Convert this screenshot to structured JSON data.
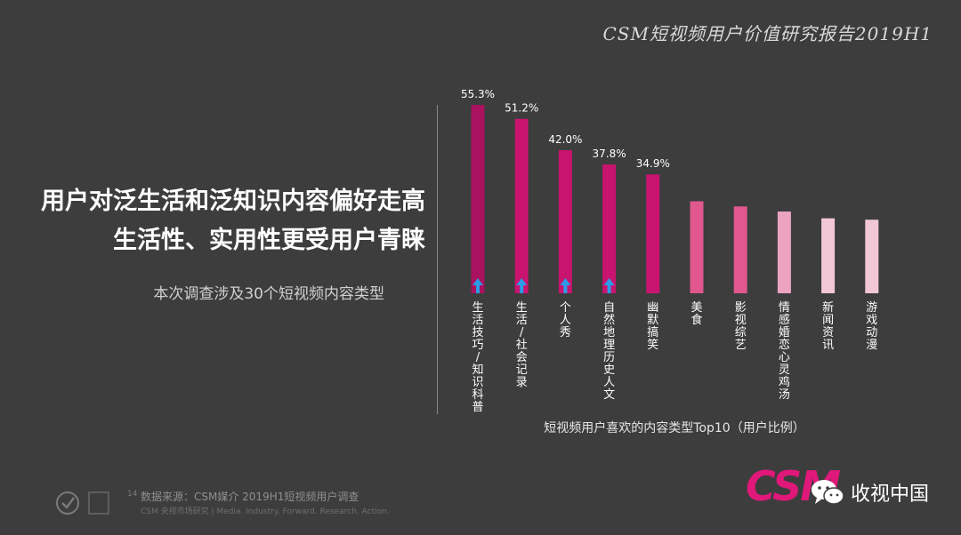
{
  "header": {
    "report_title": "CSM短视频用户价值研究报告2019H1"
  },
  "main": {
    "headline_line1": "用户对泛生活和泛知识内容偏好走高",
    "headline_line2": "生活性、实用性更受用户青睐",
    "subline": "本次调查涉及30个短视频内容类型"
  },
  "chart_data": {
    "type": "bar",
    "title": "",
    "caption": "短视频用户喜欢的内容类型Top10（用户比例）",
    "categories": [
      "生活技巧/知识科普",
      "生活/社会记录",
      "个人秀",
      "自然地理历史人文",
      "幽默搞笑",
      "美食",
      "影视综艺",
      "情感婚恋心灵鸡汤",
      "新闻资讯",
      "游戏动漫"
    ],
    "category_labels": [
      [
        "生",
        "活",
        "技",
        "巧",
        "/",
        "知",
        "识",
        "科",
        "普"
      ],
      [
        "生",
        "活",
        "/",
        "社",
        "会",
        "记",
        "录"
      ],
      [
        "个",
        "人",
        "秀"
      ],
      [
        "自",
        "然",
        "地",
        "理",
        "历",
        "史",
        "人",
        "文"
      ],
      [
        "幽",
        "默",
        "搞",
        "笑"
      ],
      [
        "美",
        "食"
      ],
      [
        "影",
        "视",
        "综",
        "艺"
      ],
      [
        "情",
        "感",
        "婚",
        "恋",
        "心",
        "灵",
        "鸡",
        "汤"
      ],
      [
        "新",
        "闻",
        "资",
        "讯"
      ],
      [
        "游",
        "戏",
        "动",
        "漫"
      ]
    ],
    "values": [
      55.3,
      51.2,
      42.0,
      37.8,
      34.9,
      27.0,
      25.5,
      24.0,
      22.0,
      21.6
    ],
    "value_labels": [
      "55.3%",
      "51.2%",
      "42.0%",
      "37.8%",
      "34.9%",
      "",
      "",
      "",
      "",
      ""
    ],
    "rising": [
      true,
      true,
      true,
      true,
      false,
      false,
      false,
      false,
      false,
      false
    ],
    "ylim": [
      0,
      60
    ],
    "grid": false,
    "colors": {
      "top": "#a8125e",
      "high": "#c8146e",
      "mid": "#e0588e",
      "low": "#eba3bf",
      "lowest": "#f2c7d6",
      "arrow": "#2d9be8"
    }
  },
  "footer": {
    "page_number": "14",
    "source": "数据来源：CSM媒介 2019H1短视频用户调查",
    "footnote": "CSM 央视市场研究 | Media. Industry. Forward. Research. Action.",
    "brand": "CSM",
    "wechat_label": "收视中国"
  }
}
